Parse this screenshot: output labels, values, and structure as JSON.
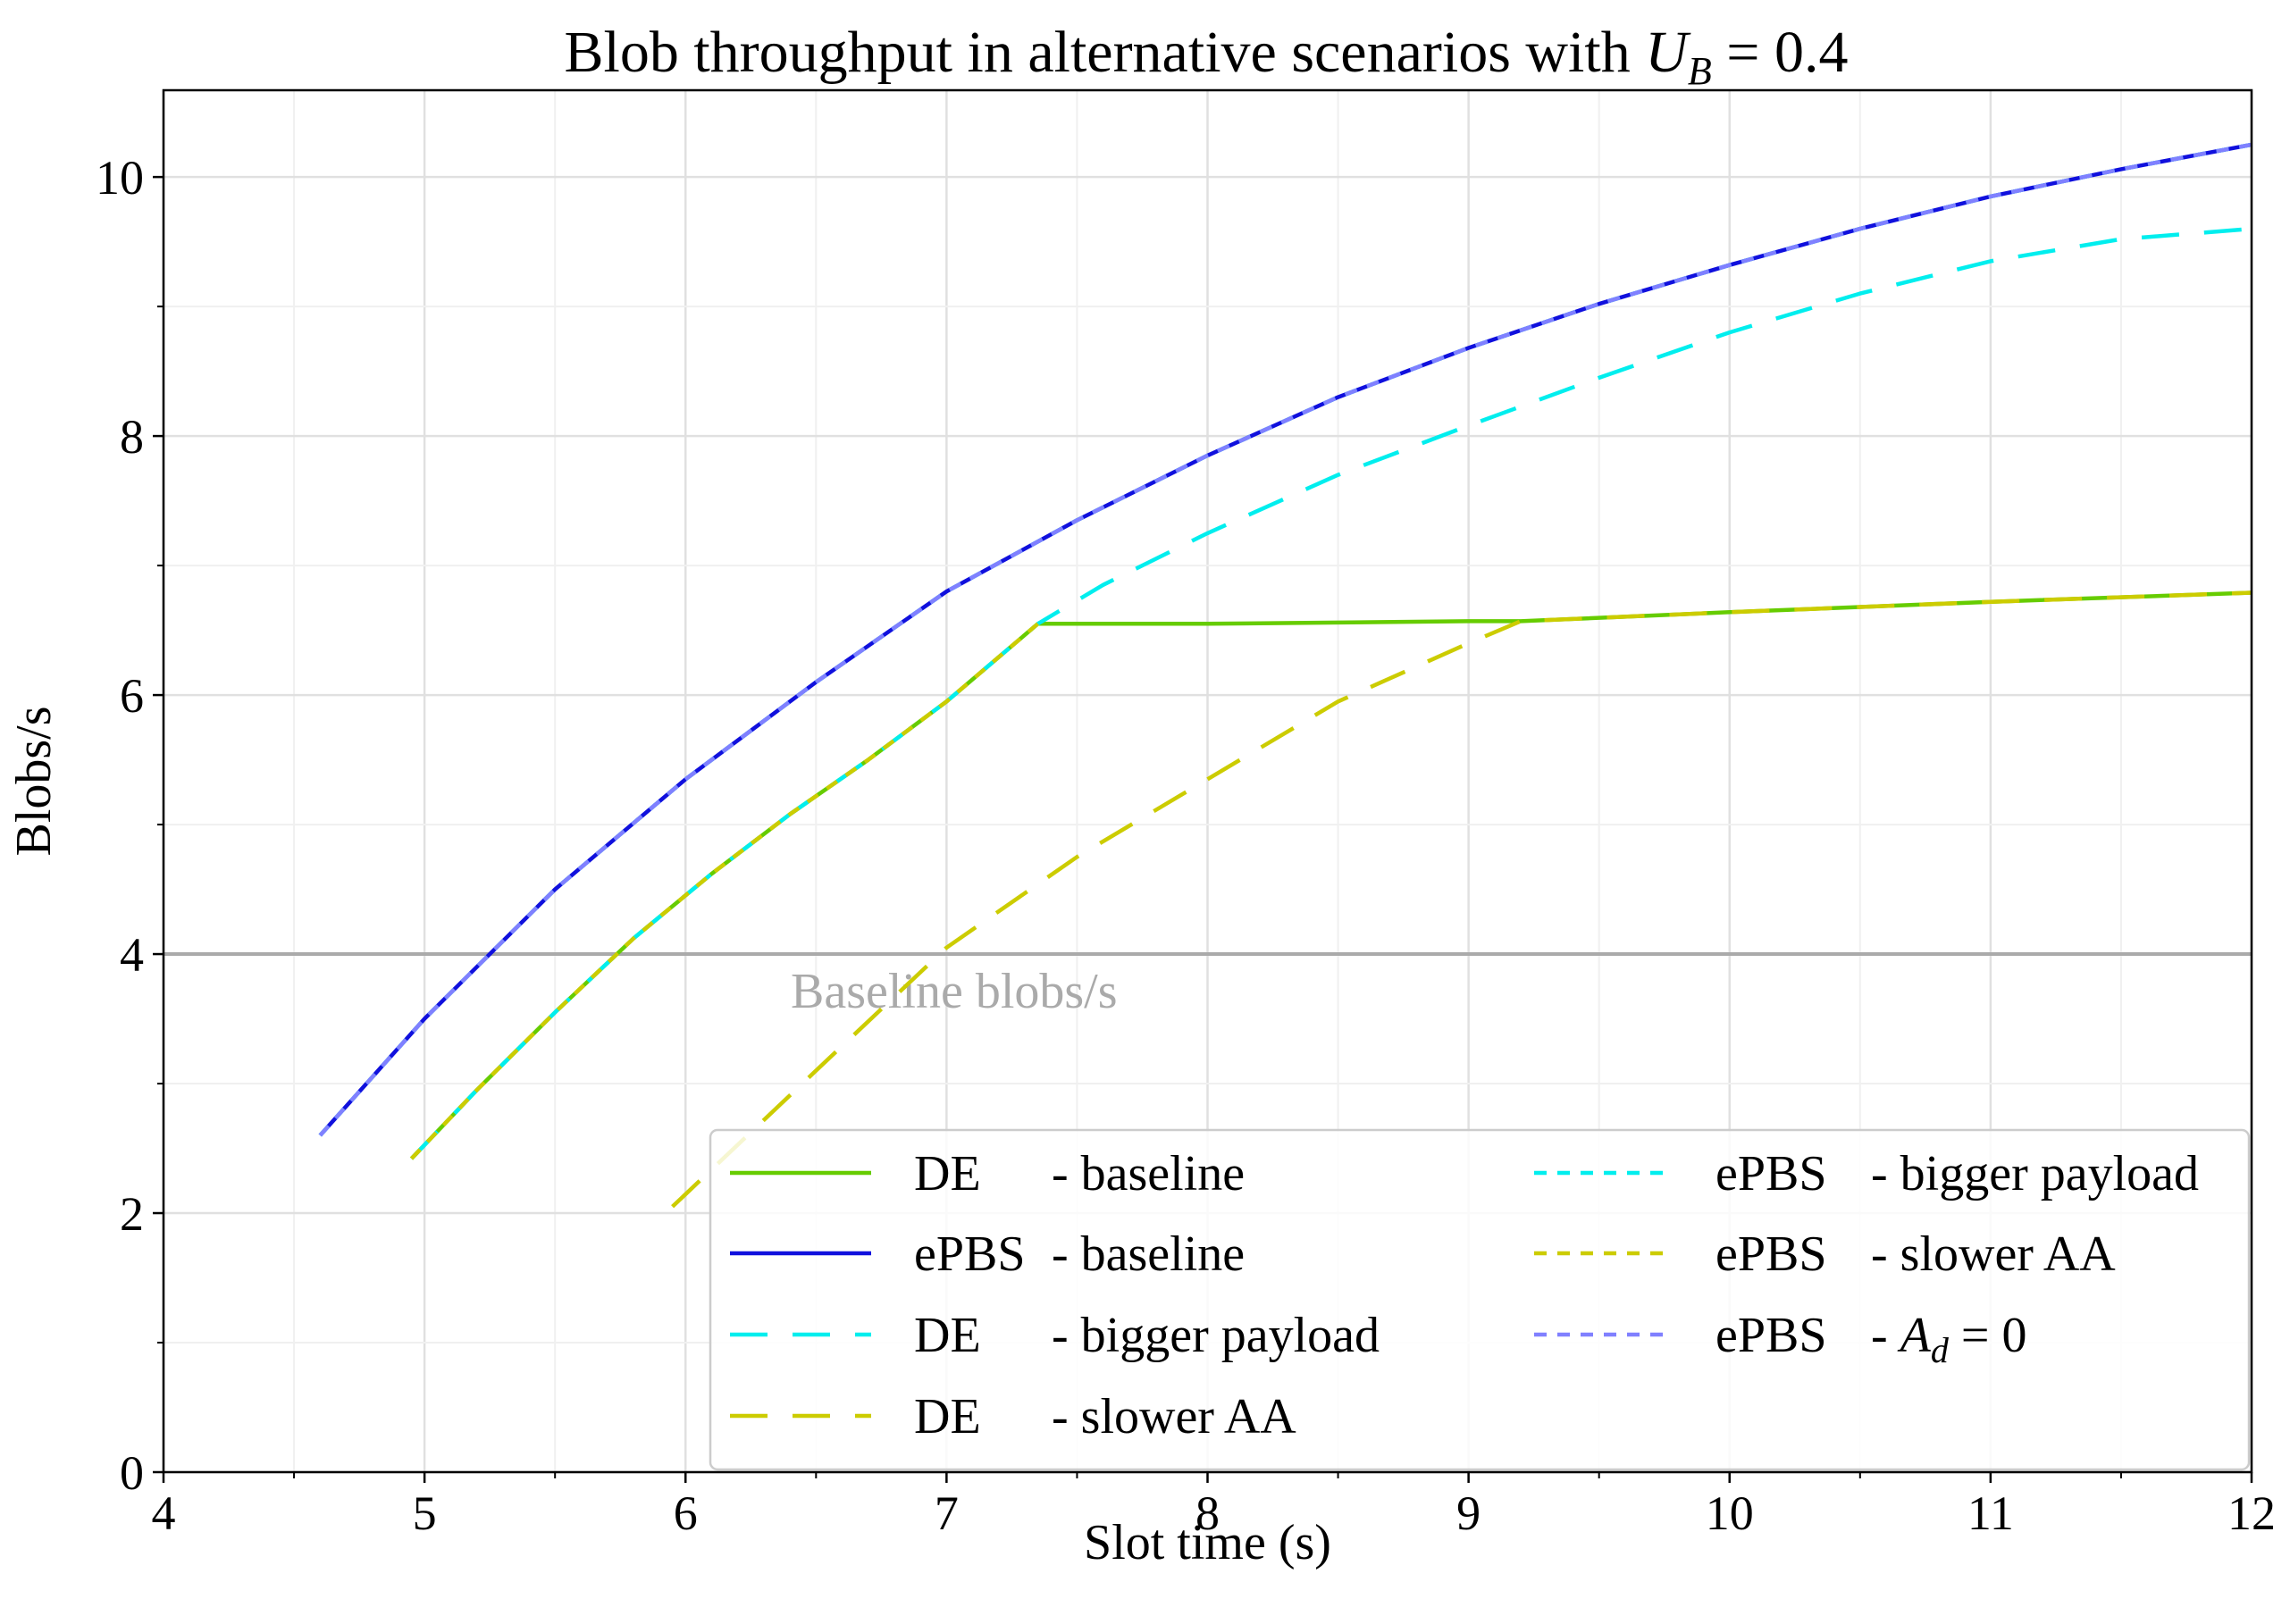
{
  "chart_data": {
    "type": "line",
    "title": "Blob throughput in alternative scenarios with U_B = 0.4",
    "title_parts": {
      "text": "Blob throughput in alternative scenarios with ",
      "var": "U",
      "sub": "B",
      "eq": " = 0.4"
    },
    "xlabel": "Slot time (s)",
    "ylabel": "Blobs/s",
    "xlim": [
      4,
      12
    ],
    "ylim": [
      0,
      10.67
    ],
    "xticks": [
      4,
      5,
      6,
      7,
      8,
      9,
      10,
      11,
      12
    ],
    "xtick_labels": [
      "4",
      "5",
      "6",
      "7",
      "8",
      "9",
      "10",
      "11",
      "12"
    ],
    "yticks": [
      0,
      2,
      4,
      6,
      8,
      10
    ],
    "ytick_labels": [
      "0",
      "2",
      "4",
      "6",
      "8",
      "10"
    ],
    "grid": true,
    "legend_placement": "lower-right",
    "reference_line": {
      "y": 4,
      "label": "Baseline blobs/s",
      "color": "#aaaaaa"
    },
    "series": [
      {
        "name": "DE - baseline",
        "legend_prefix": "DE",
        "legend_suffix": "- baseline",
        "color": "#66cc00",
        "dash": "solid",
        "x": [
          4.95,
          5.2,
          5.5,
          5.8,
          6.1,
          6.4,
          6.7,
          7.0,
          7.35,
          8.0,
          9.0,
          9.2,
          10.0,
          11.0,
          12.0
        ],
        "y": [
          2.42,
          2.95,
          3.55,
          4.12,
          4.62,
          5.08,
          5.5,
          5.95,
          6.55,
          6.55,
          6.57,
          6.57,
          6.64,
          6.72,
          6.79
        ]
      },
      {
        "name": "ePBS - baseline",
        "legend_prefix": "ePBS",
        "legend_suffix": "- baseline",
        "color": "#1010dd",
        "dash": "solid",
        "x": [
          4.6,
          5.0,
          5.5,
          6.0,
          6.5,
          7.0,
          7.5,
          8.0,
          8.5,
          9.0,
          9.5,
          10.0,
          10.5,
          11.0,
          11.5,
          12.0
        ],
        "y": [
          2.6,
          3.5,
          4.5,
          5.35,
          6.1,
          6.8,
          7.35,
          7.85,
          8.3,
          8.68,
          9.02,
          9.32,
          9.6,
          9.85,
          10.06,
          10.25
        ]
      },
      {
        "name": "DE - bigger payload",
        "legend_prefix": "DE",
        "legend_suffix": "- bigger payload",
        "color": "#00eeee",
        "dash": "long",
        "x": [
          4.95,
          5.2,
          5.5,
          5.8,
          6.1,
          6.4,
          6.7,
          7.0,
          7.35,
          7.6,
          8.0,
          8.5,
          9.0,
          9.5,
          10.0,
          10.5,
          11.0,
          11.5,
          12.0
        ],
        "y": [
          2.42,
          2.95,
          3.55,
          4.12,
          4.62,
          5.08,
          5.5,
          5.95,
          6.55,
          6.85,
          7.25,
          7.7,
          8.08,
          8.45,
          8.8,
          9.1,
          9.35,
          9.52,
          9.6
        ]
      },
      {
        "name": "DE - slower AA",
        "legend_prefix": "DE",
        "legend_suffix": "- slower AA",
        "color": "#cccc00",
        "dash": "long",
        "x": [
          5.95,
          6.5,
          7.0,
          7.5,
          8.0,
          8.5,
          9.0,
          9.2,
          10.0,
          11.0,
          12.0
        ],
        "y": [
          2.05,
          3.1,
          4.05,
          4.75,
          5.35,
          5.95,
          6.4,
          6.57,
          6.64,
          6.72,
          6.79
        ]
      },
      {
        "name": "ePBS - bigger payload",
        "legend_prefix": "ePBS",
        "legend_suffix": "- bigger payload",
        "color": "#00eeee",
        "dash": "short",
        "x": [
          4.6,
          5.0,
          5.5,
          6.0,
          6.5,
          7.0,
          7.5,
          8.0,
          8.5,
          9.0,
          9.5,
          10.0,
          10.5,
          11.0,
          11.5,
          12.0
        ],
        "y": [
          2.6,
          3.5,
          4.5,
          5.35,
          6.1,
          6.8,
          7.35,
          7.85,
          8.3,
          8.68,
          9.02,
          9.32,
          9.6,
          9.85,
          10.06,
          10.25
        ]
      },
      {
        "name": "ePBS - slower AA",
        "legend_prefix": "ePBS",
        "legend_suffix": "- slower AA",
        "color": "#cccc00",
        "dash": "short",
        "x": [
          4.95,
          5.2,
          5.5,
          5.8,
          6.1,
          6.4,
          6.7,
          7.0,
          7.35
        ],
        "y": [
          2.42,
          2.95,
          3.55,
          4.12,
          4.62,
          5.08,
          5.5,
          5.95,
          6.55
        ]
      },
      {
        "name": "ePBS - A_d = 0",
        "legend_prefix": "ePBS",
        "legend_suffix": "- ",
        "legend_var": "A",
        "legend_sub": "d",
        "legend_eq": " = 0",
        "color": "#8080ff",
        "dash": "short",
        "x": [
          4.6,
          5.0,
          5.5,
          6.0,
          6.5,
          7.0,
          7.5,
          8.0,
          8.5,
          9.0,
          9.5,
          10.0,
          10.5,
          11.0,
          11.5,
          12.0
        ],
        "y": [
          2.6,
          3.5,
          4.5,
          5.35,
          6.1,
          6.8,
          7.35,
          7.85,
          8.3,
          8.68,
          9.02,
          9.32,
          9.6,
          9.85,
          10.06,
          10.25
        ]
      }
    ]
  }
}
